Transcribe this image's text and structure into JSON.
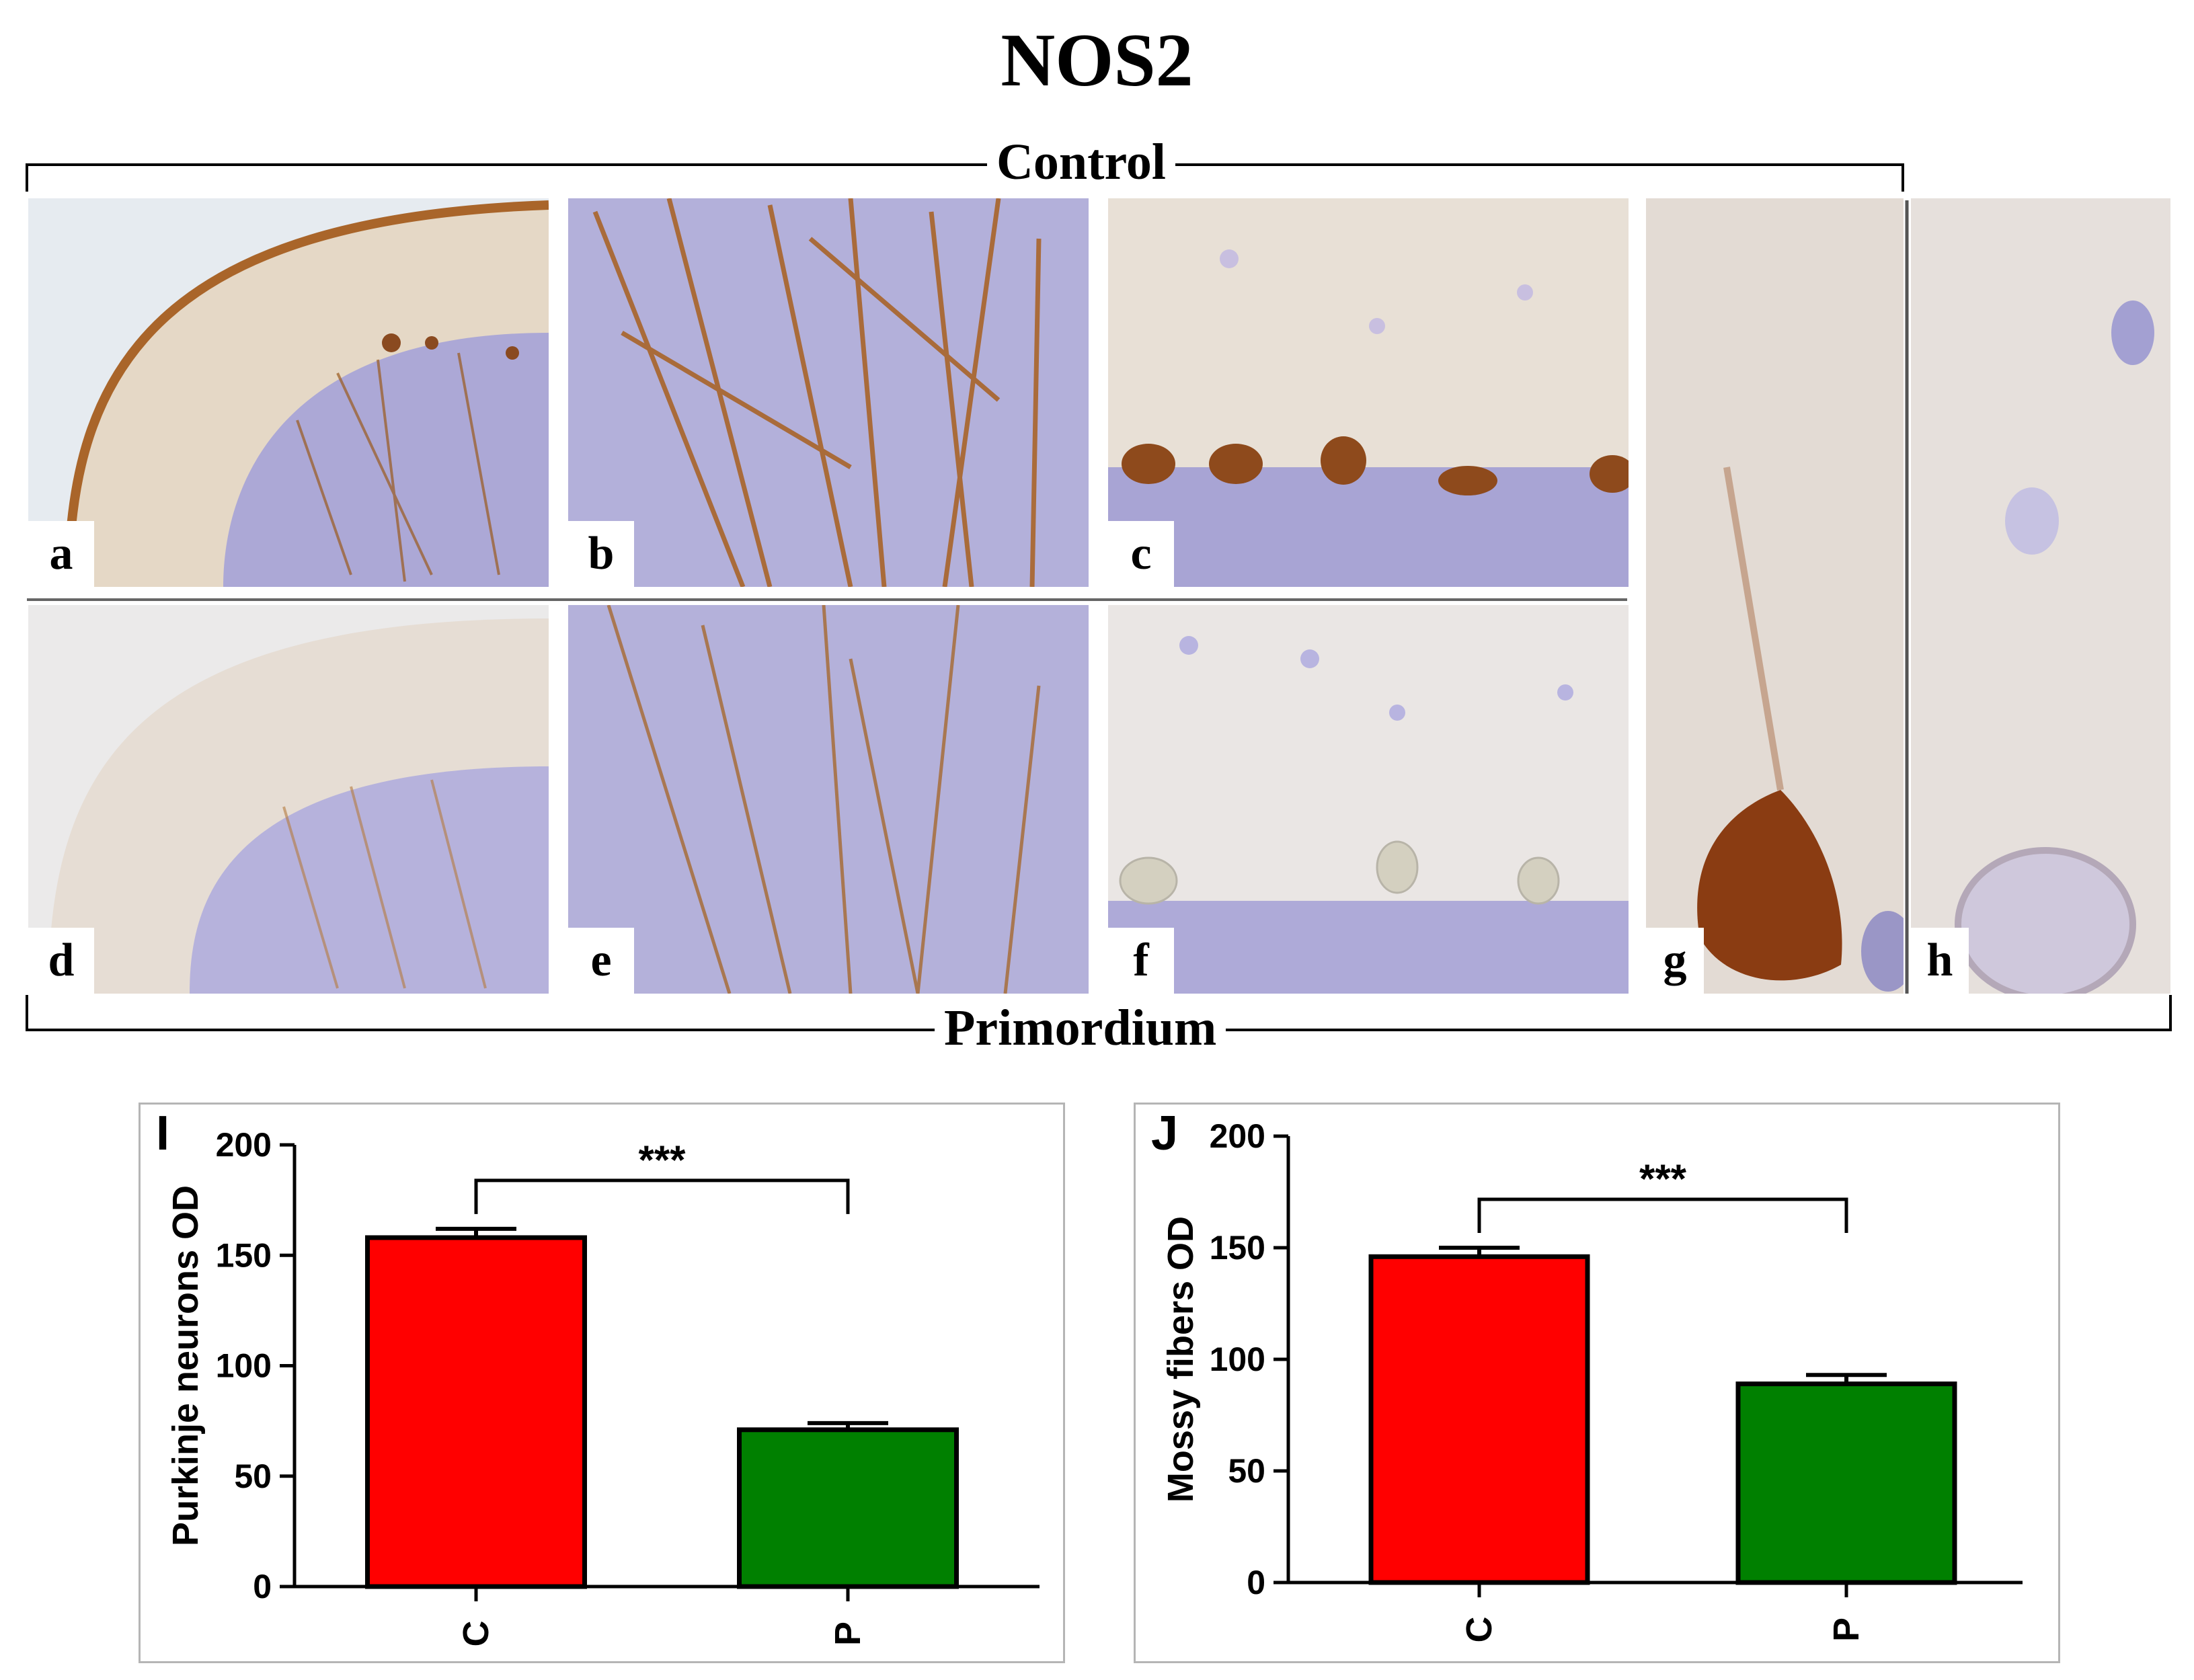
{
  "figure_title": "NOS2",
  "group_labels": {
    "top": "Control",
    "bottom": "Primordium"
  },
  "colors": {
    "control_bar": "#ff0000",
    "primordium_bar": "#008000",
    "brown_stain": "#9a5a1e",
    "hematoxylin": "#8c8cd2"
  },
  "micrograph_panels": [
    {
      "id": "a",
      "letter": "a"
    },
    {
      "id": "b",
      "letter": "b"
    },
    {
      "id": "c",
      "letter": "c"
    },
    {
      "id": "d",
      "letter": "d"
    },
    {
      "id": "e",
      "letter": "e"
    },
    {
      "id": "f",
      "letter": "f"
    },
    {
      "id": "g",
      "letter": "g"
    },
    {
      "id": "h",
      "letter": "h"
    }
  ],
  "chart_data": [
    {
      "type": "bar",
      "panel_letter": "I",
      "title": "",
      "categories": [
        "C",
        "P"
      ],
      "values": [
        158,
        71
      ],
      "error": [
        4,
        3
      ],
      "ylabel": "Purkinje neurons OD",
      "xlabel": "",
      "ylim": [
        0,
        200
      ],
      "yticks": [
        0,
        50,
        100,
        150,
        200
      ],
      "significance": "***",
      "grid": false,
      "bar_colors": [
        "#ff0000",
        "#008000"
      ]
    },
    {
      "type": "bar",
      "panel_letter": "J",
      "title": "",
      "categories": [
        "C",
        "P"
      ],
      "values": [
        146,
        89
      ],
      "error": [
        4,
        4
      ],
      "ylabel": "Mossy fibers OD",
      "xlabel": "",
      "ylim": [
        0,
        200
      ],
      "yticks": [
        0,
        50,
        100,
        150,
        200
      ],
      "significance": "***",
      "grid": false,
      "bar_colors": [
        "#ff0000",
        "#008000"
      ]
    }
  ]
}
